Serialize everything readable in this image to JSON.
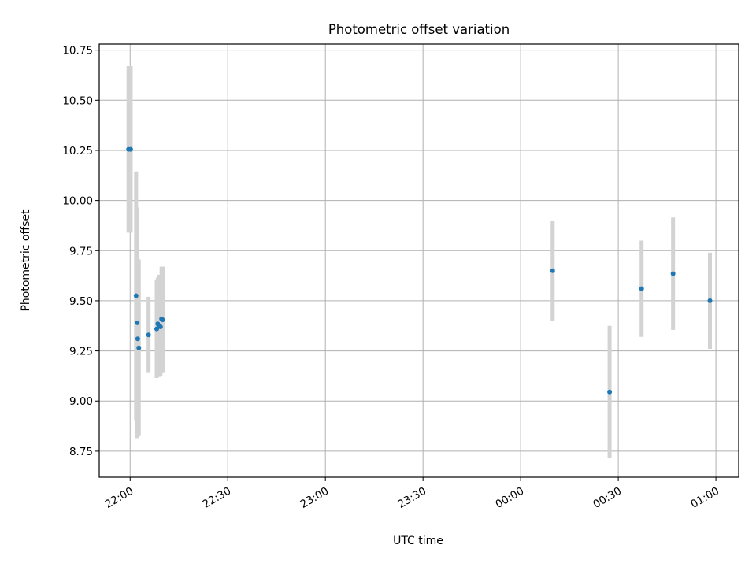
{
  "chart_data": {
    "type": "scatter",
    "title": "Photometric offset variation",
    "xlabel": "UTC time",
    "ylabel": "Photometric offset",
    "x_tick_labels": [
      "22:00",
      "22:30",
      "23:00",
      "23:30",
      "00:00",
      "00:30",
      "01:00"
    ],
    "y_ticks": [
      8.75,
      9.0,
      9.25,
      9.5,
      9.75,
      10.0,
      10.25,
      10.5,
      10.75
    ],
    "y_tick_labels": [
      "8.75",
      "9.00",
      "9.25",
      "9.50",
      "9.75",
      "10.00",
      "10.25",
      "10.50",
      "10.75"
    ],
    "xlim": [
      "21:50:30",
      "01:07:00"
    ],
    "ylim": [
      8.62,
      10.78
    ],
    "grid": true,
    "colors": {
      "point": "#1f77b4",
      "error_bar": "#d3d3d3",
      "grid": "#b0b0b0"
    },
    "points": [
      {
        "time": "21:59:30",
        "y": 10.255,
        "err": 0.415
      },
      {
        "time": "22:00:10",
        "y": 10.255,
        "err": 0.415
      },
      {
        "time": "22:01:50",
        "y": 9.525,
        "err": 0.62
      },
      {
        "time": "22:02:10",
        "y": 9.39,
        "err": 0.575
      },
      {
        "time": "22:02:20",
        "y": 9.31,
        "err": 0.4
      },
      {
        "time": "22:02:40",
        "y": 9.265,
        "err": 0.44
      },
      {
        "time": "22:05:40",
        "y": 9.33,
        "err": 0.19
      },
      {
        "time": "22:08:10",
        "y": 9.36,
        "err": 0.245
      },
      {
        "time": "22:08:30",
        "y": 9.385,
        "err": 0.23
      },
      {
        "time": "22:09:00",
        "y": 9.375,
        "err": 0.255
      },
      {
        "time": "22:09:20",
        "y": 9.37,
        "err": 0.245
      },
      {
        "time": "22:09:40",
        "y": 9.41,
        "err": 0.26
      },
      {
        "time": "22:10:00",
        "y": 9.405,
        "err": 0.265
      },
      {
        "time": "00:09:50",
        "y": 9.65,
        "err": 0.25
      },
      {
        "time": "00:27:20",
        "y": 9.045,
        "err": 0.33
      },
      {
        "time": "00:37:10",
        "y": 9.56,
        "err": 0.24
      },
      {
        "time": "00:46:50",
        "y": 9.635,
        "err": 0.28
      },
      {
        "time": "00:58:10",
        "y": 9.5,
        "err": 0.24
      }
    ]
  }
}
